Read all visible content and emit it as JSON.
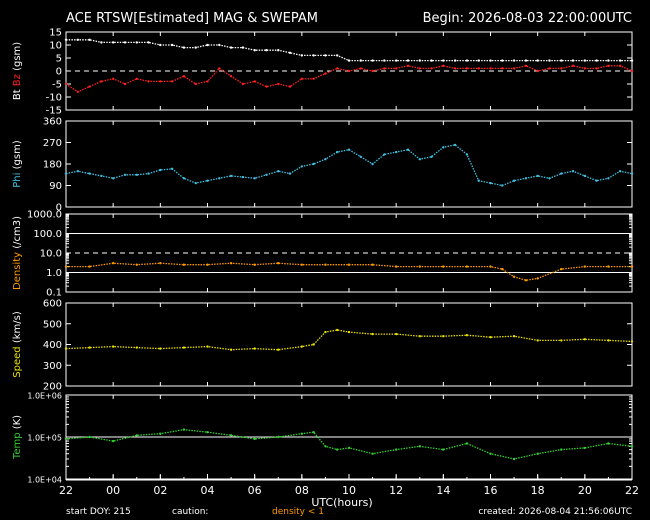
{
  "header": {
    "title": "ACE RTSW[Estimated] MAG & SWEPAM",
    "begin": "Begin: 2026-08-03 22:00:00UTC"
  },
  "footer": {
    "start_doy": "start DOY: 215",
    "caution": "caution:",
    "caution_note": "density < 1",
    "created": "created: 2026-08-04 21:56:06UTC"
  },
  "colors": {
    "background": "#000000",
    "axis": "#ffffff",
    "bt": "#ffffff",
    "bz": "#ff2020",
    "phi": "#40c0e0",
    "density": "#ff9900",
    "speed": "#e8e000",
    "temp": "#30d030"
  },
  "chart_data": [
    {
      "id": "mag-b",
      "type": "scatter",
      "ylabel_parts": [
        "Bt",
        "Bz",
        "(gsm)"
      ],
      "ylim": [
        -15,
        15
      ],
      "yticks": [
        -15,
        -10,
        -5,
        0,
        5,
        10,
        15
      ],
      "reference_lines": [
        {
          "y": 0,
          "style": "dashed"
        }
      ],
      "series": [
        {
          "name": "Bt",
          "color": "#ffffff",
          "x": [
            0,
            0.5,
            1,
            1.5,
            2,
            2.5,
            3,
            3.5,
            4,
            4.5,
            5,
            5.5,
            6,
            6.5,
            7,
            7.5,
            8,
            8.5,
            9,
            9.5,
            10,
            10.5,
            11,
            11.5,
            12,
            12.5,
            13,
            13.5,
            14,
            14.5,
            15,
            15.5,
            16,
            16.5,
            17,
            17.5,
            18,
            18.5,
            19,
            19.5,
            20,
            20.5,
            21,
            21.5,
            22,
            22.5,
            23,
            23.5,
            24
          ],
          "y": [
            12,
            12,
            12,
            11,
            11,
            11,
            11,
            11,
            10,
            10,
            9,
            9,
            10,
            10,
            9,
            9,
            8,
            8,
            8,
            7,
            6,
            6,
            6,
            6,
            4,
            4,
            4,
            4,
            4,
            4,
            4,
            4,
            4,
            4,
            4,
            4,
            4,
            4,
            4,
            4,
            4,
            4,
            4,
            4,
            4,
            4,
            4,
            4,
            4
          ]
        },
        {
          "name": "Bz",
          "color": "#ff2020",
          "x": [
            0,
            0.5,
            1,
            1.5,
            2,
            2.5,
            3,
            3.5,
            4,
            4.5,
            5,
            5.5,
            6,
            6.5,
            7,
            7.5,
            8,
            8.5,
            9,
            9.5,
            10,
            10.5,
            11,
            11.5,
            12,
            12.5,
            13,
            13.5,
            14,
            14.5,
            15,
            15.5,
            16,
            16.5,
            17,
            17.5,
            18,
            18.5,
            19,
            19.5,
            20,
            20.5,
            21,
            21.5,
            22,
            22.5,
            23,
            23.5,
            24
          ],
          "y": [
            -5,
            -8,
            -6,
            -4,
            -3,
            -5,
            -3,
            -4,
            -4,
            -4,
            -2,
            -5,
            -4,
            1,
            -2,
            -5,
            -4,
            -6,
            -5,
            -6,
            -3,
            -3,
            -1,
            1,
            0,
            1,
            0,
            1,
            1,
            2,
            1,
            1,
            2,
            1,
            1,
            1,
            1,
            1,
            1,
            2,
            0,
            1,
            1,
            2,
            1,
            1,
            2,
            2,
            0
          ]
        }
      ]
    },
    {
      "id": "phi",
      "type": "scatter",
      "ylabel": "Phi (gsm)",
      "ylim": [
        0,
        360
      ],
      "yticks": [
        0,
        90,
        180,
        270,
        360
      ],
      "series": [
        {
          "name": "Phi",
          "color": "#40c0e0",
          "x": [
            0,
            0.5,
            1,
            1.5,
            2,
            2.5,
            3,
            3.5,
            4,
            4.5,
            5,
            5.5,
            6,
            6.5,
            7,
            7.5,
            8,
            8.5,
            9,
            9.5,
            10,
            10.5,
            11,
            11.5,
            12,
            12.5,
            13,
            13.5,
            14,
            14.5,
            15,
            15.5,
            16,
            16.5,
            17,
            17.5,
            18,
            18.5,
            19,
            19.5,
            20,
            20.5,
            21,
            21.5,
            22,
            22.5,
            23,
            23.5,
            24
          ],
          "y": [
            140,
            150,
            140,
            130,
            120,
            135,
            135,
            140,
            155,
            160,
            120,
            100,
            110,
            120,
            130,
            125,
            120,
            135,
            150,
            140,
            170,
            180,
            200,
            230,
            240,
            210,
            180,
            220,
            230,
            240,
            200,
            210,
            250,
            260,
            220,
            110,
            100,
            90,
            110,
            120,
            130,
            120,
            140,
            150,
            130,
            110,
            120,
            150,
            140
          ]
        }
      ]
    },
    {
      "id": "density",
      "type": "scatter",
      "ylabel": "Density (/cm3)",
      "yscale": "log",
      "ylim": [
        0.1,
        1000
      ],
      "yticks": [
        0.1,
        1.0,
        10.0,
        100.0,
        1000.0
      ],
      "reference_lines": [
        {
          "y": 1,
          "style": "solid"
        },
        {
          "y": 10,
          "style": "dashed"
        },
        {
          "y": 100,
          "style": "solid"
        }
      ],
      "series": [
        {
          "name": "Density",
          "color": "#ff9900",
          "x": [
            0,
            1,
            2,
            3,
            4,
            5,
            6,
            7,
            8,
            9,
            10,
            11,
            12,
            13,
            14,
            15,
            16,
            17,
            18,
            18.5,
            19,
            19.5,
            20,
            21,
            22,
            23,
            24
          ],
          "y": [
            2,
            2,
            3,
            2.5,
            3,
            2.5,
            2.5,
            3,
            2.5,
            3,
            2.5,
            2.5,
            2.5,
            2.5,
            2,
            2,
            2,
            2,
            2,
            1.5,
            0.6,
            0.4,
            0.5,
            1.5,
            2,
            2,
            2
          ]
        }
      ]
    },
    {
      "id": "speed",
      "type": "scatter",
      "ylabel": "Speed (km/s)",
      "ylim": [
        200,
        600
      ],
      "yticks": [
        200,
        300,
        400,
        500,
        600
      ],
      "series": [
        {
          "name": "Speed",
          "color": "#e8e000",
          "x": [
            0,
            1,
            2,
            3,
            4,
            5,
            6,
            7,
            8,
            9,
            10,
            10.5,
            11,
            11.5,
            12,
            13,
            14,
            15,
            16,
            17,
            18,
            19,
            20,
            21,
            22,
            23,
            24
          ],
          "y": [
            380,
            385,
            390,
            385,
            380,
            385,
            390,
            375,
            380,
            375,
            390,
            400,
            460,
            470,
            460,
            450,
            450,
            440,
            440,
            445,
            435,
            440,
            420,
            420,
            425,
            420,
            415
          ]
        }
      ]
    },
    {
      "id": "temp",
      "type": "scatter",
      "ylabel": "Temp (K)",
      "yscale": "log",
      "ylim": [
        10000,
        1000000
      ],
      "yticks": [
        10000,
        100000,
        1000000
      ],
      "ytick_labels": [
        "1.0E+04",
        "1.0E+05",
        "1.0E+06"
      ],
      "reference_lines": [
        {
          "y": 100000,
          "style": "solid"
        }
      ],
      "series": [
        {
          "name": "Temp",
          "color": "#30d030",
          "x": [
            0,
            1,
            2,
            3,
            4,
            5,
            6,
            7,
            8,
            9,
            10,
            10.5,
            11,
            11.5,
            12,
            13,
            14,
            15,
            16,
            17,
            18,
            19,
            20,
            21,
            22,
            23,
            24
          ],
          "y": [
            90000,
            100000,
            80000,
            110000,
            120000,
            150000,
            130000,
            110000,
            90000,
            100000,
            120000,
            130000,
            60000,
            50000,
            55000,
            40000,
            50000,
            60000,
            50000,
            70000,
            40000,
            30000,
            40000,
            50000,
            55000,
            70000,
            60000
          ]
        }
      ]
    }
  ],
  "xaxis": {
    "label": "UTC(hours)",
    "range": [
      0,
      24
    ],
    "ticks": [
      0,
      2,
      4,
      6,
      8,
      10,
      12,
      14,
      16,
      18,
      20,
      22,
      24
    ],
    "tick_labels": [
      "22",
      "00",
      "02",
      "04",
      "06",
      "08",
      "10",
      "12",
      "14",
      "16",
      "18",
      "20",
      "22"
    ]
  }
}
